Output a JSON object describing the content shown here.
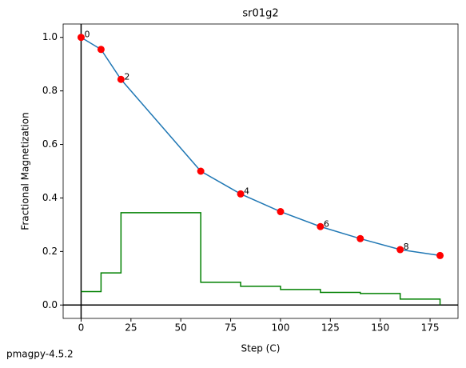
{
  "chart_data": {
    "type": "line",
    "title": "sr01g2",
    "xlabel": "Step (C)",
    "ylabel": "Fractional Magnetization",
    "footer": "pmagpy-4.5.2",
    "x": [
      0,
      10,
      20,
      60,
      80,
      100,
      120,
      140,
      160,
      180
    ],
    "series": [
      {
        "color": "#1f77b4",
        "marker_color": "#ff0000",
        "values": [
          1.0,
          0.955,
          0.843,
          0.5,
          0.415,
          0.349,
          0.293,
          0.248,
          0.207,
          0.185
        ]
      },
      {
        "color": "#008000",
        "step": "post",
        "values": [
          0.05,
          0.12,
          0.345,
          0.085,
          0.07,
          0.058,
          0.047,
          0.043,
          0.022,
          0
        ]
      }
    ],
    "point_labels": [
      "0",
      null,
      "2",
      null,
      "4",
      null,
      "6",
      null,
      "8",
      null
    ],
    "xlim": [
      -9,
      189
    ],
    "xticks": [
      0,
      25,
      50,
      75,
      100,
      125,
      150,
      175
    ],
    "ylim": [
      -0.05,
      1.05
    ],
    "yticks": [
      {
        "value": 0,
        "label": "0.0"
      },
      0.2,
      0.4,
      0.6,
      0.8,
      {
        "value": 1,
        "label": "1.0"
      }
    ]
  }
}
